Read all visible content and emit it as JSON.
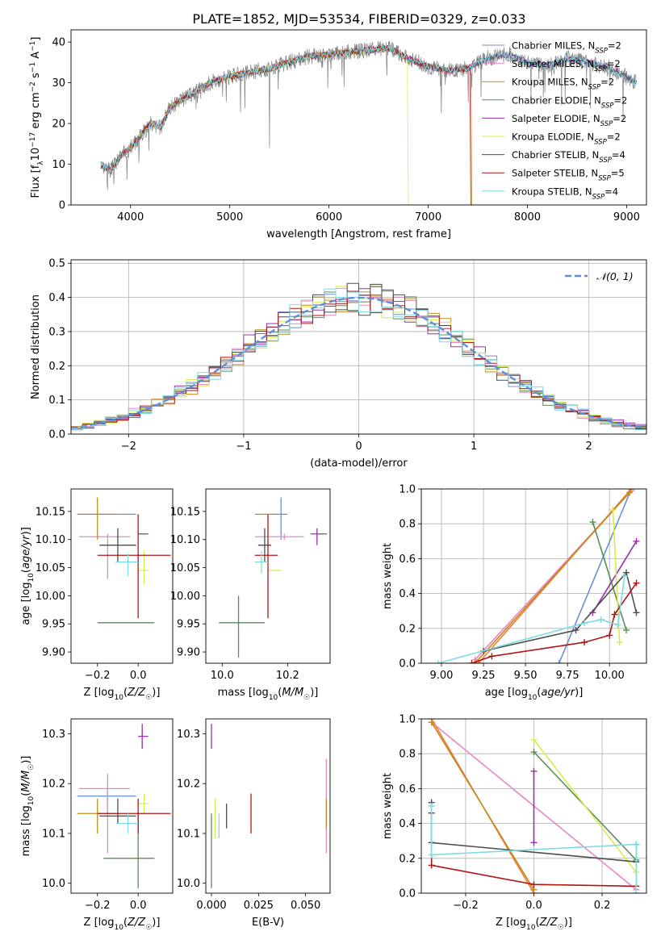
{
  "figure": {
    "title": "PLATE=1852, MJD=53534, FIBERID=0329, z=0.033"
  },
  "colors": {
    "chabrier_miles": "#6a8fd6",
    "salpeter_miles": "#e887c2",
    "kroupa_miles": "#c58a1e",
    "chabrier_elodie": "#5a8d5a",
    "salpeter_elodie": "#9b2fae",
    "kroupa_elodie": "#d9ec4a",
    "chabrier_stelib": "#4d4d4d",
    "salpeter_stelib": "#b01515",
    "kroupa_stelib": "#7fdbe0",
    "orange_line": "#f07a3a",
    "normal_curve": "#5f8fd9",
    "grid": "#b0b0b0"
  },
  "chart_data": [
    {
      "id": "spectrum",
      "type": "line",
      "xlabel": "wavelength [Angstrom, rest frame]",
      "ylabel": "Flux [f_λ10^-17 erg cm^-2 s^-1 A^-1]",
      "xlim": [
        3400,
        9200
      ],
      "ylim": [
        0,
        43
      ],
      "xticks": [
        4000,
        5000,
        6000,
        7000,
        8000,
        9000
      ],
      "yticks": [
        0,
        10,
        20,
        30,
        40
      ],
      "grid": false,
      "legend_placement": "right",
      "continuum": {
        "x": [
          3700,
          3800,
          3900,
          4000,
          4100,
          4200,
          4300,
          4400,
          4500,
          4600,
          4800,
          5000,
          5200,
          5400,
          5600,
          5800,
          6000,
          6200,
          6400,
          6600,
          6800,
          7000,
          7200,
          7400,
          7600,
          7800,
          8000,
          8200,
          8400,
          8600,
          8800,
          9100
        ],
        "y": [
          10,
          8.5,
          12,
          14,
          17,
          20,
          19,
          24,
          25.5,
          27,
          30,
          31.5,
          32.5,
          33.5,
          35,
          36.5,
          37,
          37.5,
          38,
          38.5,
          36,
          34,
          33,
          33.5,
          36,
          37,
          35,
          34,
          36,
          35,
          34,
          30
        ]
      },
      "drops": [
        {
          "series": "Kroupa ELODIE",
          "x": 6790
        },
        {
          "series": "Salpeter STELIB",
          "x": 7420
        },
        {
          "series": "Kroupa MILES",
          "x": 7430
        }
      ],
      "legend": [
        {
          "name": "Chabrier MILES, N",
          "sub": "SSP",
          "tail": "=2",
          "color_key": "chabrier_miles"
        },
        {
          "name": "Salpeter MILES, N",
          "sub": "SSP",
          "tail": "=2",
          "color_key": "salpeter_miles"
        },
        {
          "name": "Kroupa MILES, N",
          "sub": "SSP",
          "tail": "=2",
          "color_key": "kroupa_miles"
        },
        {
          "name": "Chabrier ELODIE, N",
          "sub": "SSP",
          "tail": "=2",
          "color_key": "chabrier_elodie"
        },
        {
          "name": "Salpeter ELODIE, N",
          "sub": "SSP",
          "tail": "=2",
          "color_key": "salpeter_elodie"
        },
        {
          "name": "Kroupa ELODIE, N",
          "sub": "SSP",
          "tail": "=2",
          "color_key": "kroupa_elodie"
        },
        {
          "name": "Chabrier STELIB, N",
          "sub": "SSP",
          "tail": "=4",
          "color_key": "chabrier_stelib"
        },
        {
          "name": "Salpeter STELIB, N",
          "sub": "SSP",
          "tail": "=5",
          "color_key": "salpeter_stelib"
        },
        {
          "name": "Kroupa STELIB, N",
          "sub": "SSP",
          "tail": "=4",
          "color_key": "kroupa_stelib"
        }
      ]
    },
    {
      "id": "residuals",
      "type": "line",
      "xlabel": "(data-model)/error",
      "ylabel": "Normed distribution",
      "xlim": [
        -2.5,
        2.5
      ],
      "ylim": [
        0,
        0.51
      ],
      "xticks": [
        -2,
        -1,
        0,
        1,
        2
      ],
      "yticks": [
        0.0,
        0.1,
        0.2,
        0.3,
        0.4,
        0.5
      ],
      "grid": true,
      "legend_placement": "top-right",
      "legend_label": "𝒩(0, 1)",
      "bin_width": 0.1,
      "series": [
        {
          "color_key": "chabrier_miles",
          "seed": 1
        },
        {
          "color_key": "salpeter_miles",
          "seed": 2
        },
        {
          "color_key": "kroupa_miles",
          "seed": 3
        },
        {
          "color_key": "chabrier_elodie",
          "seed": 4
        },
        {
          "color_key": "salpeter_elodie",
          "seed": 5
        },
        {
          "color_key": "kroupa_elodie",
          "seed": 6
        },
        {
          "color_key": "chabrier_stelib",
          "seed": 7
        },
        {
          "color_key": "salpeter_stelib",
          "seed": 8
        },
        {
          "color_key": "kroupa_stelib",
          "seed": 9
        }
      ]
    },
    {
      "id": "age-vs-z",
      "type": "scatter",
      "xlabel": "Z [log10(Z/Z☉)]",
      "ylabel": "age [log10(age/yr)]",
      "xlim": [
        -0.33,
        0.17
      ],
      "ylim": [
        9.88,
        10.19
      ],
      "xticks": [
        -0.2,
        0.0
      ],
      "yticks": [
        9.9,
        9.95,
        10.0,
        10.05,
        10.1,
        10.15
      ],
      "points": [
        {
          "color_key": "chabrier_miles",
          "x": -0.15,
          "y": 10.145,
          "xlo": -0.3,
          "xhi": -0.01,
          "ylo": 10.145,
          "yhi": 10.145
        },
        {
          "color_key": "salpeter_miles",
          "x": -0.15,
          "y": 10.105,
          "xlo": -0.29,
          "xhi": -0.04,
          "ylo": 10.03,
          "yhi": 10.11
        },
        {
          "color_key": "kroupa_miles",
          "x": -0.2,
          "y": 10.145,
          "xlo": -0.3,
          "xhi": -0.1,
          "ylo": 10.1,
          "yhi": 10.175
        },
        {
          "color_key": "chabrier_elodie",
          "x": 0.0,
          "y": 9.952,
          "xlo": -0.2,
          "xhi": 0.08,
          "ylo": 9.952,
          "yhi": 9.952
        },
        {
          "color_key": "salpeter_elodie",
          "x": 0.02,
          "y": 10.11,
          "xlo": 0.0,
          "xhi": 0.05,
          "ylo": 10.11,
          "yhi": 10.11
        },
        {
          "color_key": "kroupa_elodie",
          "x": 0.03,
          "y": 10.045,
          "xlo": 0.0,
          "xhi": 0.05,
          "ylo": 10.02,
          "yhi": 10.08
        },
        {
          "color_key": "chabrier_stelib",
          "x": -0.1,
          "y": 10.09,
          "xlo": -0.19,
          "xhi": -0.01,
          "ylo": 10.06,
          "yhi": 10.12
        },
        {
          "color_key": "salpeter_stelib",
          "x": 0.0,
          "y": 10.072,
          "xlo": -0.2,
          "xhi": 0.16,
          "ylo": 9.96,
          "yhi": 10.145
        },
        {
          "color_key": "kroupa_stelib",
          "x": -0.05,
          "y": 10.06,
          "xlo": -0.11,
          "xhi": 0.0,
          "ylo": 10.035,
          "yhi": 10.075
        }
      ]
    },
    {
      "id": "age-vs-mass",
      "type": "scatter",
      "xlabel": "mass [log10(M/M☉)]",
      "ylabel": "",
      "xlim": [
        9.95,
        10.33
      ],
      "ylim": [
        9.88,
        10.19
      ],
      "xticks": [
        10.0,
        10.2
      ],
      "yticks": [
        9.9,
        9.95,
        10.0,
        10.05,
        10.1,
        10.15
      ],
      "points": [
        {
          "color_key": "chabrier_miles",
          "x": 10.18,
          "y": 10.145,
          "xlo": 10.15,
          "xhi": 10.2,
          "ylo": 10.1,
          "yhi": 10.175
        },
        {
          "color_key": "salpeter_miles",
          "x": 10.19,
          "y": 10.105,
          "xlo": 10.1,
          "xhi": 10.25,
          "ylo": 10.1,
          "yhi": 10.11
        },
        {
          "color_key": "kroupa_miles",
          "x": 10.14,
          "y": 10.145,
          "xlo": 10.1,
          "xhi": 10.17,
          "ylo": 10.145,
          "yhi": 10.145
        },
        {
          "color_key": "chabrier_elodie",
          "x": 10.05,
          "y": 9.952,
          "xlo": 9.99,
          "xhi": 10.13,
          "ylo": 9.89,
          "yhi": 10.0
        },
        {
          "color_key": "salpeter_elodie",
          "x": 10.29,
          "y": 10.11,
          "xlo": 10.27,
          "xhi": 10.32,
          "ylo": 10.09,
          "yhi": 10.12
        },
        {
          "color_key": "kroupa_elodie",
          "x": 10.16,
          "y": 10.045,
          "xlo": 10.14,
          "xhi": 10.18,
          "ylo": 10.045,
          "yhi": 10.045
        },
        {
          "color_key": "chabrier_stelib",
          "x": 10.13,
          "y": 10.09,
          "xlo": 10.11,
          "xhi": 10.15,
          "ylo": 10.06,
          "yhi": 10.12
        },
        {
          "color_key": "salpeter_stelib",
          "x": 10.14,
          "y": 10.072,
          "xlo": 10.1,
          "xhi": 10.17,
          "ylo": 9.96,
          "yhi": 10.145
        },
        {
          "color_key": "kroupa_stelib",
          "x": 10.12,
          "y": 10.06,
          "xlo": 10.1,
          "xhi": 10.14,
          "ylo": 10.04,
          "yhi": 10.08
        }
      ]
    },
    {
      "id": "weight-vs-age",
      "type": "line",
      "xlabel": "age [log10(age/yr)]",
      "ylabel": "mass weight",
      "xlim": [
        8.88,
        10.22
      ],
      "ylim": [
        0,
        1.0
      ],
      "xticks": [
        9.0,
        9.25,
        9.5,
        9.75,
        10.0
      ],
      "yticks": [
        0.0,
        0.2,
        0.4,
        0.6,
        0.8,
        1.0
      ],
      "grid": true,
      "series": [
        {
          "color_key": "chabrier_miles",
          "x": [
            9.7,
            10.13
          ],
          "y": [
            0.0,
            1.0
          ]
        },
        {
          "color_key": "salpeter_miles",
          "x": [
            9.2,
            10.13
          ],
          "y": [
            0.02,
            0.99
          ]
        },
        {
          "color_key": "orange_line",
          "x": [
            9.22,
            10.13
          ],
          "y": [
            0.0,
            1.0
          ]
        },
        {
          "color_key": "kroupa_miles",
          "x": [
            9.2,
            10.12
          ],
          "y": [
            0.0,
            0.98
          ]
        },
        {
          "color_key": "chabrier_elodie",
          "x": [
            9.9,
            10.1
          ],
          "y": [
            0.81,
            0.19
          ]
        },
        {
          "color_key": "salpeter_elodie",
          "x": [
            9.9,
            10.16
          ],
          "y": [
            0.29,
            0.7
          ]
        },
        {
          "color_key": "kroupa_elodie",
          "x": [
            10.02,
            10.06
          ],
          "y": [
            0.88,
            0.12
          ]
        },
        {
          "color_key": "chabrier_stelib",
          "x": [
            9.25,
            9.8,
            10.1,
            10.16
          ],
          "y": [
            0.07,
            0.19,
            0.52,
            0.29
          ]
        },
        {
          "color_key": "salpeter_stelib",
          "x": [
            9.18,
            9.3,
            9.85,
            10.0,
            10.03,
            10.16
          ],
          "y": [
            0.0,
            0.04,
            0.12,
            0.16,
            0.28,
            0.46
          ]
        },
        {
          "color_key": "kroupa_stelib",
          "x": [
            8.98,
            9.85,
            9.95,
            10.05,
            10.09
          ],
          "y": [
            0.0,
            0.23,
            0.25,
            0.22,
            0.5
          ]
        }
      ]
    },
    {
      "id": "mass-vs-z",
      "type": "scatter",
      "xlabel": "Z [log10(Z/Z☉)]",
      "ylabel": "mass [log10(M/M☉)]",
      "xlim": [
        -0.33,
        0.17
      ],
      "ylim": [
        9.98,
        10.33
      ],
      "xticks": [
        -0.2,
        0.0
      ],
      "yticks": [
        10.0,
        10.1,
        10.2,
        10.3
      ],
      "points": [
        {
          "color_key": "chabrier_miles",
          "x": -0.15,
          "y": 10.175,
          "xlo": -0.3,
          "xhi": -0.01,
          "ylo": 10.14,
          "yhi": 10.2
        },
        {
          "color_key": "salpeter_miles",
          "x": -0.15,
          "y": 10.19,
          "xlo": -0.29,
          "xhi": -0.04,
          "ylo": 10.06,
          "yhi": 10.22
        },
        {
          "color_key": "kroupa_miles",
          "x": -0.2,
          "y": 10.14,
          "xlo": -0.3,
          "xhi": -0.1,
          "ylo": 10.1,
          "yhi": 10.17
        },
        {
          "color_key": "chabrier_elodie",
          "x": 0.0,
          "y": 10.05,
          "xlo": -0.17,
          "xhi": 0.08,
          "ylo": 9.99,
          "yhi": 10.14
        },
        {
          "color_key": "salpeter_elodie",
          "x": 0.02,
          "y": 10.295,
          "xlo": 0.0,
          "xhi": 0.05,
          "ylo": 10.27,
          "yhi": 10.32
        },
        {
          "color_key": "kroupa_elodie",
          "x": 0.03,
          "y": 10.16,
          "xlo": 0.0,
          "xhi": 0.05,
          "ylo": 10.14,
          "yhi": 10.18
        },
        {
          "color_key": "chabrier_stelib",
          "x": -0.1,
          "y": 10.135,
          "xlo": -0.19,
          "xhi": -0.01,
          "ylo": 10.12,
          "yhi": 10.17
        },
        {
          "color_key": "salpeter_stelib",
          "x": 0.0,
          "y": 10.14,
          "xlo": -0.2,
          "xhi": 0.16,
          "ylo": 10.1,
          "yhi": 10.17
        },
        {
          "color_key": "kroupa_stelib",
          "x": -0.05,
          "y": 10.12,
          "xlo": -0.11,
          "xhi": 0.0,
          "ylo": 10.1,
          "yhi": 10.14
        }
      ]
    },
    {
      "id": "mass-vs-ebv",
      "type": "scatter",
      "xlabel": "E(B-V)",
      "ylabel": "",
      "xlim": [
        -0.003,
        0.063
      ],
      "ylim": [
        9.98,
        10.33
      ],
      "xticks": [
        0.0,
        0.025,
        0.05
      ],
      "xticklabels": [
        "0.000",
        "0.025",
        "0.050"
      ],
      "yticks": [
        10.0,
        10.1,
        10.2,
        10.3
      ],
      "points": [
        {
          "color_key": "chabrier_elodie",
          "x": 0.0,
          "y": 10.05,
          "xlo": 0.0,
          "xhi": 0.0,
          "ylo": 9.99,
          "yhi": 10.14
        },
        {
          "color_key": "salpeter_elodie",
          "x": 0.0,
          "y": 10.295,
          "xlo": 0.0,
          "xhi": 0.0,
          "ylo": 10.27,
          "yhi": 10.32
        },
        {
          "color_key": "kroupa_elodie",
          "x": 0.002,
          "y": 10.14,
          "xlo": 0.002,
          "xhi": 0.002,
          "ylo": 10.09,
          "yhi": 10.17
        },
        {
          "color_key": "kroupa_stelib",
          "x": 0.004,
          "y": 10.12,
          "xlo": 0.004,
          "xhi": 0.004,
          "ylo": 10.09,
          "yhi": 10.14
        },
        {
          "color_key": "chabrier_stelib",
          "x": 0.008,
          "y": 10.135,
          "xlo": 0.008,
          "xhi": 0.008,
          "ylo": 10.11,
          "yhi": 10.16
        },
        {
          "color_key": "salpeter_stelib",
          "x": 0.021,
          "y": 10.14,
          "xlo": 0.021,
          "xhi": 0.021,
          "ylo": 10.1,
          "yhi": 10.18
        },
        {
          "color_key": "salpeter_miles",
          "x": 0.061,
          "y": 10.19,
          "xlo": 0.061,
          "xhi": 0.061,
          "ylo": 10.06,
          "yhi": 10.25
        },
        {
          "color_key": "kroupa_miles",
          "x": 0.061,
          "y": 10.14,
          "xlo": 0.061,
          "xhi": 0.061,
          "ylo": 10.11,
          "yhi": 10.17
        }
      ]
    },
    {
      "id": "weight-vs-z",
      "type": "line",
      "xlabel": "Z [log10(Z/Z☉)]",
      "ylabel": "mass weight",
      "xlim": [
        -0.33,
        0.33
      ],
      "ylim": [
        0,
        1.0
      ],
      "xticks": [
        -0.2,
        0.0,
        0.2
      ],
      "yticks": [
        0.0,
        0.2,
        0.4,
        0.6,
        0.8,
        1.0
      ],
      "grid": true,
      "series": [
        {
          "color_key": "salpeter_miles",
          "x": [
            -0.3,
            0.3
          ],
          "y": [
            0.98,
            0.02
          ]
        },
        {
          "color_key": "orange_line",
          "x": [
            -0.3,
            0.0
          ],
          "y": [
            1.0,
            0.0
          ]
        },
        {
          "color_key": "kroupa_miles",
          "x": [
            -0.3,
            0.0
          ],
          "y": [
            0.98,
            0.02
          ]
        },
        {
          "color_key": "chabrier_elodie",
          "x": [
            0.0,
            0.3
          ],
          "y": [
            0.81,
            0.19
          ]
        },
        {
          "color_key": "kroupa_elodie",
          "x": [
            0.0,
            0.3
          ],
          "y": [
            0.88,
            0.12
          ]
        },
        {
          "color_key": "salpeter_elodie",
          "x": [
            0.0,
            0.0
          ],
          "y": [
            0.29,
            0.7
          ]
        },
        {
          "color_key": "chabrier_stelib",
          "x": [
            -0.3,
            -0.3,
            0.3,
            0.3
          ],
          "y": [
            0.52,
            0.29,
            0.18,
            0.28
          ]
        },
        {
          "color_key": "salpeter_stelib",
          "x": [
            -0.3,
            -0.3,
            0.0,
            0.3
          ],
          "y": [
            0.46,
            0.16,
            0.05,
            0.04
          ]
        },
        {
          "color_key": "kroupa_stelib",
          "x": [
            -0.3,
            -0.3,
            0.3,
            0.3
          ],
          "y": [
            0.5,
            0.22,
            0.28,
            0.0
          ]
        }
      ]
    }
  ]
}
